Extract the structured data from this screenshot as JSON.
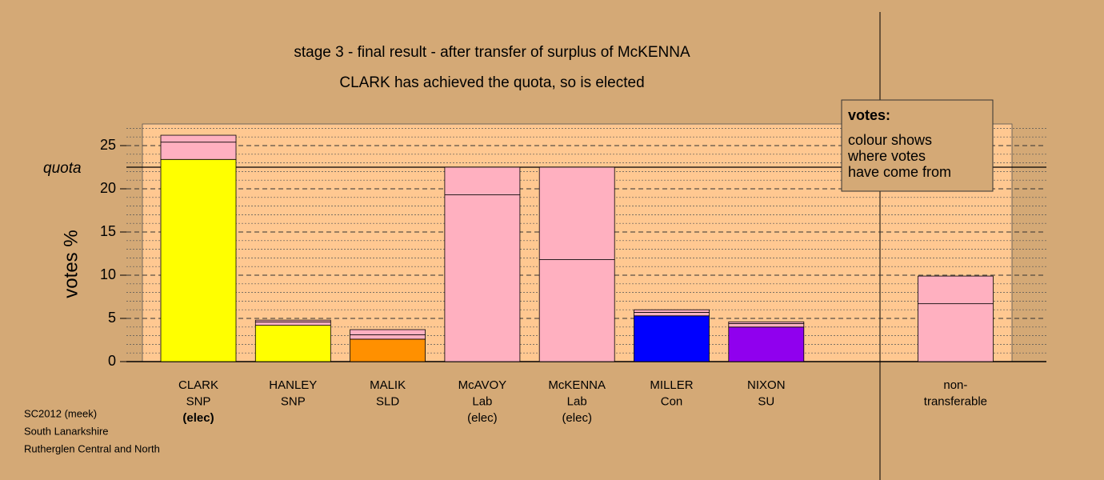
{
  "chart_data": {
    "type": "bar",
    "title": "stage 3 - final result - after transfer of surplus of McKENNA",
    "subtitle": "CLARK has achieved the quota, so is elected",
    "ylabel": "votes %",
    "ylim": [
      0,
      27.5
    ],
    "yticks": [
      0,
      5,
      10,
      15,
      20,
      25
    ],
    "minor_yticks": [
      1,
      2,
      3,
      4,
      6,
      7,
      8,
      9,
      11,
      12,
      13,
      14,
      16,
      17,
      18,
      19,
      21,
      22,
      23,
      24,
      26,
      27
    ],
    "quota": {
      "label": "quota",
      "value": 22.5
    },
    "categories": [
      [
        "CLARK",
        "SNP",
        "(elec)"
      ],
      [
        "HANLEY",
        "SNP"
      ],
      [
        "MALIK",
        "SLD"
      ],
      [
        "McAVOY",
        "Lab",
        "(elec)"
      ],
      [
        "McKENNA",
        "Lab",
        "(elec)"
      ],
      [
        "MILLER",
        "Con"
      ],
      [
        "NIXON",
        "SU"
      ],
      [
        "non-",
        "transferable"
      ]
    ],
    "segments": [
      [
        {
          "value": 23.4,
          "color": "#ffff00"
        },
        {
          "value": 2.0,
          "color": "#ffb0c0"
        },
        {
          "value": 0.8,
          "color": "#ffb0c0"
        }
      ],
      [
        {
          "value": 4.2,
          "color": "#ffff00"
        },
        {
          "value": 0.4,
          "color": "#ffb0c0"
        },
        {
          "value": 0.2,
          "color": "#ffb0c0"
        }
      ],
      [
        {
          "value": 2.6,
          "color": "#ff9000"
        },
        {
          "value": 0.5,
          "color": "#ffb0c0"
        },
        {
          "value": 0.6,
          "color": "#ffb0c0"
        }
      ],
      [
        {
          "value": 19.3,
          "color": "#ffb0c0"
        },
        {
          "value": 3.2,
          "color": "#ffb0c0"
        }
      ],
      [
        {
          "value": 11.8,
          "color": "#ffb0c0"
        },
        {
          "value": 10.7,
          "color": "#ffb0c0"
        }
      ],
      [
        {
          "value": 5.3,
          "color": "#0000ff"
        },
        {
          "value": 0.4,
          "color": "#ffb0c0"
        },
        {
          "value": 0.3,
          "color": "#ffb0c0"
        }
      ],
      [
        {
          "value": 4.0,
          "color": "#9000ee"
        },
        {
          "value": 0.4,
          "color": "#ffb0c0"
        },
        {
          "value": 0.2,
          "color": "#ffb0c0"
        }
      ],
      [
        {
          "value": 6.7,
          "color": "#ffb0c0"
        },
        {
          "value": 3.2,
          "color": "#ffb0c0"
        }
      ]
    ],
    "legend": {
      "title": "votes:",
      "lines": [
        "colour shows",
        "where votes",
        "have come from"
      ]
    },
    "footnote": [
      "SC2012 (meek)",
      "South Lanarkshire",
      "Rutherglen Central and North"
    ]
  }
}
